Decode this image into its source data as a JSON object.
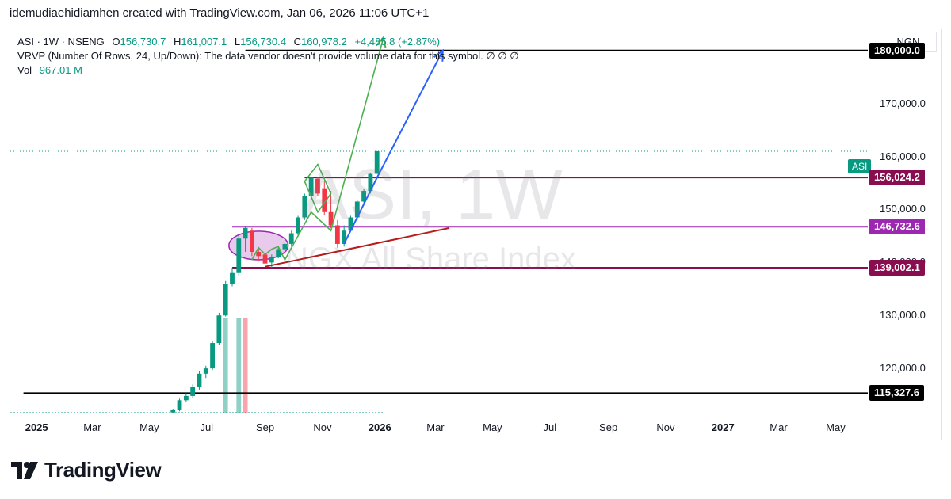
{
  "credit": "idemudiaehidiamhen created with TradingView.com, Jan 06, 2026 11:06 UTC+1",
  "legend": {
    "symbol": "ASI · 1W · NSENG",
    "o_label": "O",
    "o_val": "156,730.7",
    "h_label": "H",
    "h_val": "161,007.1",
    "l_label": "L",
    "l_val": "156,730.4",
    "c_label": "C",
    "c_val": "160,978.2",
    "change": "+4,485.8 (+2.87%)",
    "vrvp": "VRVP (Number Of Rows, 24, Up/Down): The data vendor doesn't provide volume data for this symbol.  ∅  ∅  ∅",
    "vol_label": "Vol",
    "vol_val": "967.01 M"
  },
  "currency": "NGN",
  "symbol_tag": "ASI",
  "watermark": {
    "line1": "ASI, 1W",
    "line2": "NGX All Share Index"
  },
  "brand": "TradingView",
  "colors": {
    "up": "#089981",
    "down": "#f23645",
    "maroon": "#880e4f",
    "violet": "#9c27b0",
    "black": "#000000"
  },
  "chart_data": {
    "type": "candlestick",
    "interval": "1W",
    "y_ticks": [
      120000,
      130000,
      140000,
      150000,
      160000,
      170000
    ],
    "y_tick_labels": [
      "120,000.0",
      "130,000.0",
      "140,000.0",
      "150,000.0",
      "160,000.0",
      "170,000.0"
    ],
    "ylim": [
      111500,
      184000
    ],
    "x_ticks": [
      {
        "label": "2025",
        "date": "2025-01-01",
        "bold": true
      },
      {
        "label": "Mar",
        "date": "2025-03-01"
      },
      {
        "label": "May",
        "date": "2025-05-01"
      },
      {
        "label": "Jul",
        "date": "2025-07-01"
      },
      {
        "label": "Sep",
        "date": "2025-09-01"
      },
      {
        "label": "Nov",
        "date": "2025-11-01"
      },
      {
        "label": "2026",
        "date": "2026-01-01",
        "bold": true
      },
      {
        "label": "Mar",
        "date": "2026-03-01"
      },
      {
        "label": "May",
        "date": "2026-05-01"
      },
      {
        "label": "Jul",
        "date": "2026-07-01"
      },
      {
        "label": "Sep",
        "date": "2026-09-01"
      },
      {
        "label": "Nov",
        "date": "2026-11-01"
      },
      {
        "label": "2027",
        "date": "2027-01-01",
        "bold": true
      },
      {
        "label": "Mar",
        "date": "2027-03-01"
      },
      {
        "label": "May",
        "date": "2027-05-01"
      }
    ],
    "xlim": [
      "2024-12-04",
      "2027-06-04"
    ],
    "candles": [
      {
        "date": "2025-05-26",
        "o": 111700,
        "h": 112300,
        "l": 111500,
        "c": 112100
      },
      {
        "date": "2025-06-02",
        "o": 112100,
        "h": 114300,
        "l": 111900,
        "c": 114000
      },
      {
        "date": "2025-06-09",
        "o": 114000,
        "h": 115300,
        "l": 113600,
        "c": 114800
      },
      {
        "date": "2025-06-16",
        "o": 114800,
        "h": 117000,
        "l": 114400,
        "c": 116500
      },
      {
        "date": "2025-06-23",
        "o": 116500,
        "h": 119500,
        "l": 116000,
        "c": 119000
      },
      {
        "date": "2025-06-30",
        "o": 119000,
        "h": 120500,
        "l": 118200,
        "c": 120000
      },
      {
        "date": "2025-07-07",
        "o": 120000,
        "h": 125200,
        "l": 119700,
        "c": 124800
      },
      {
        "date": "2025-07-14",
        "o": 124800,
        "h": 130500,
        "l": 124500,
        "c": 130000
      },
      {
        "date": "2025-07-21",
        "o": 130000,
        "h": 136500,
        "l": 129800,
        "c": 136000
      },
      {
        "date": "2025-07-28",
        "o": 136000,
        "h": 139000,
        "l": 135500,
        "c": 138000
      },
      {
        "date": "2025-08-04",
        "o": 138000,
        "h": 145000,
        "l": 137500,
        "c": 144500
      },
      {
        "date": "2025-08-11",
        "o": 144500,
        "h": 146900,
        "l": 142000,
        "c": 146500
      },
      {
        "date": "2025-08-18",
        "o": 146000,
        "h": 146500,
        "l": 141200,
        "c": 142000
      },
      {
        "date": "2025-08-25",
        "o": 142000,
        "h": 142800,
        "l": 140300,
        "c": 141200
      },
      {
        "date": "2025-09-01",
        "o": 141500,
        "h": 142500,
        "l": 139100,
        "c": 139800
      },
      {
        "date": "2025-09-08",
        "o": 140000,
        "h": 141500,
        "l": 139000,
        "c": 141000
      },
      {
        "date": "2025-09-15",
        "o": 141000,
        "h": 142800,
        "l": 140800,
        "c": 142500
      },
      {
        "date": "2025-09-22",
        "o": 142500,
        "h": 144000,
        "l": 142000,
        "c": 143500
      },
      {
        "date": "2025-09-29",
        "o": 143500,
        "h": 146000,
        "l": 143000,
        "c": 145500
      },
      {
        "date": "2025-10-06",
        "o": 145500,
        "h": 148800,
        "l": 145000,
        "c": 148500
      },
      {
        "date": "2025-10-13",
        "o": 148500,
        "h": 153000,
        "l": 148000,
        "c": 152500
      },
      {
        "date": "2025-10-20",
        "o": 152500,
        "h": 156200,
        "l": 152000,
        "c": 156000
      },
      {
        "date": "2025-10-27",
        "o": 155800,
        "h": 156100,
        "l": 152500,
        "c": 153000
      },
      {
        "date": "2025-11-03",
        "o": 154000,
        "h": 155500,
        "l": 149000,
        "c": 149500
      },
      {
        "date": "2025-11-10",
        "o": 149500,
        "h": 153500,
        "l": 146500,
        "c": 147000
      },
      {
        "date": "2025-11-17",
        "o": 147000,
        "h": 148000,
        "l": 142800,
        "c": 143500
      },
      {
        "date": "2025-11-24",
        "o": 143500,
        "h": 147000,
        "l": 143000,
        "c": 146000
      },
      {
        "date": "2025-12-01",
        "o": 146000,
        "h": 148800,
        "l": 145800,
        "c": 148500
      },
      {
        "date": "2025-12-08",
        "o": 148500,
        "h": 151800,
        "l": 148000,
        "c": 151500
      },
      {
        "date": "2025-12-15",
        "o": 151500,
        "h": 153800,
        "l": 151000,
        "c": 153500
      },
      {
        "date": "2025-12-22",
        "o": 153500,
        "h": 156900,
        "l": 153000,
        "c": 156700
      },
      {
        "date": "2025-12-29",
        "o": 156730.7,
        "h": 161007.1,
        "l": 156730.4,
        "c": 160978.2
      }
    ],
    "volume_bars": [
      {
        "date": "2025-07-21",
        "up": true,
        "level": 1.0
      },
      {
        "date": "2025-08-04",
        "up": true,
        "level": 1.0
      },
      {
        "date": "2025-08-11",
        "up": false,
        "level": 1.0
      }
    ],
    "horizontal_levels": [
      {
        "price": 180000,
        "label": "180,000.0",
        "color": "#000000",
        "from": "2025-08-11"
      },
      {
        "price": 156024.2,
        "label": "156,024.2",
        "color": "#880e4f",
        "from": "2025-10-13"
      },
      {
        "price": 146732.6,
        "label": "146,732.6",
        "color": "#9c27b0",
        "from": "2025-07-28"
      },
      {
        "price": 139002.1,
        "label": "139,002.1",
        "color": "#880e4f",
        "from": "2025-07-28"
      },
      {
        "price": 115327.6,
        "label": "115,327.6",
        "color": "#000000",
        "from": "2024-12-18"
      }
    ],
    "current_price": 160978.2,
    "drawings": {
      "trend_line": {
        "color": "#b71c1c",
        "points": [
          [
            "2025-09-01",
            139200
          ],
          [
            "2026-03-16",
            146500
          ]
        ]
      },
      "ellipse": {
        "center": [
          "2025-08-25",
          143200
        ],
        "rx_weeks": 4.5,
        "ry_price": 2700,
        "fill": "rgba(186,104,200,0.35)",
        "stroke": "#9c27b0"
      },
      "green_path": {
        "color": "#4caf50",
        "points": [
          [
            "2025-08-18",
            140500
          ],
          [
            "2025-08-25",
            142800
          ],
          [
            "2025-09-01",
            141500
          ],
          [
            "2025-09-08",
            142500
          ],
          [
            "2025-09-15",
            143000
          ],
          [
            "2025-09-22",
            140500
          ],
          [
            "2025-10-20",
            149500
          ],
          [
            "2025-11-10",
            146000
          ],
          [
            "2026-01-05",
            182500
          ]
        ]
      },
      "green_diamond": {
        "color": "#4caf50",
        "points": [
          [
            "2025-10-13",
            155300
          ],
          [
            "2025-10-27",
            158500
          ],
          [
            "2025-11-10",
            153000
          ],
          [
            "2025-10-27",
            149500
          ]
        ]
      },
      "blue_arrow": {
        "color": "#2962ff",
        "points": [
          [
            "2025-11-24",
            143500
          ],
          [
            "2025-12-29",
            156000
          ],
          [
            "2026-03-09",
            180000
          ]
        ]
      }
    }
  }
}
